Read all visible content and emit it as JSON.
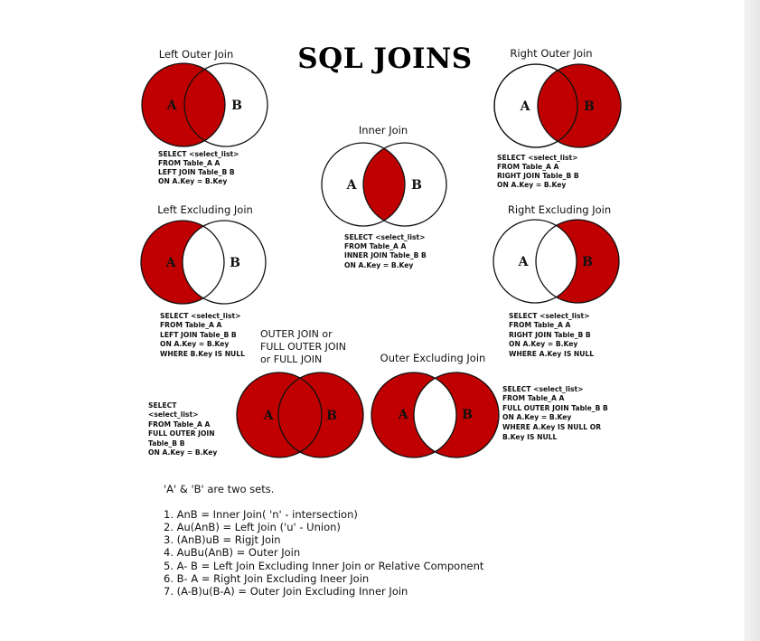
{
  "title": "SQL JOINS",
  "set_a": "A",
  "set_b": "B",
  "joins": {
    "left_outer": {
      "label": "Left Outer Join",
      "sql": [
        "SELECT <select_list>",
        "FROM Table_A A",
        "LEFT JOIN Table_B B",
        "ON A.Key = B.Key"
      ]
    },
    "right_outer": {
      "label": "Right Outer Join",
      "sql": [
        "SELECT <select_list>",
        "FROM Table_A A",
        "RIGHT JOIN Table_B B",
        "ON A.Key = B.Key"
      ]
    },
    "inner": {
      "label": "Inner Join",
      "sql": [
        "SELECT <select_list>",
        "FROM Table_A A",
        "INNER JOIN Table_B B",
        "ON A.Key = B.Key"
      ]
    },
    "left_excluding": {
      "label": "Left Excluding Join",
      "sql": [
        "SELECT <select_list>",
        "FROM Table_A A",
        "LEFT JOIN Table_B B",
        "ON A.Key = B.Key",
        "WHERE B.Key IS NULL"
      ]
    },
    "right_excluding": {
      "label": "Right Excluding Join",
      "sql": [
        "SELECT <select_list>",
        "FROM Table_A A",
        "RIGHT JOIN Table_B B",
        "ON A.Key = B.Key",
        "WHERE A.Key IS NULL"
      ]
    },
    "full_outer": {
      "label": [
        "OUTER JOIN or",
        "FULL OUTER JOIN",
        "or FULL JOIN"
      ],
      "sql": [
        "SELECT",
        "<select_list>",
        "FROM Table_A A",
        "FULL OUTER JOIN",
        "Table_B B",
        "ON A.Key = B.Key"
      ]
    },
    "outer_excluding": {
      "label": "Outer Excluding Join",
      "sql": [
        "SELECT <select_list>",
        "FROM Table_A A",
        "FULL OUTER JOIN Table_B B",
        "ON A.Key = B.Key",
        "WHERE A.Key IS NULL OR",
        "B.Key IS NULL"
      ]
    }
  },
  "legend": {
    "intro": "'A' & 'B' are two sets.",
    "items": [
      "1. AnB = Inner Join( 'n' - intersection)",
      "2. Au(AnB) = Left Join ('u' - Union)",
      "3. (AnB)uB = Rigjt Join",
      "4. AuBu(AnB) = Outer Join",
      "5. A- B = Left Join Excluding Inner Join or Relative Component",
      "6. B- A = Right Join Excluding Ineer Join",
      "7. (A-B)u(B-A) = Outer Join Excluding Inner Join"
    ]
  },
  "colors": {
    "fill": "#c00000",
    "stroke": "#111111",
    "background": "#ffffff"
  }
}
